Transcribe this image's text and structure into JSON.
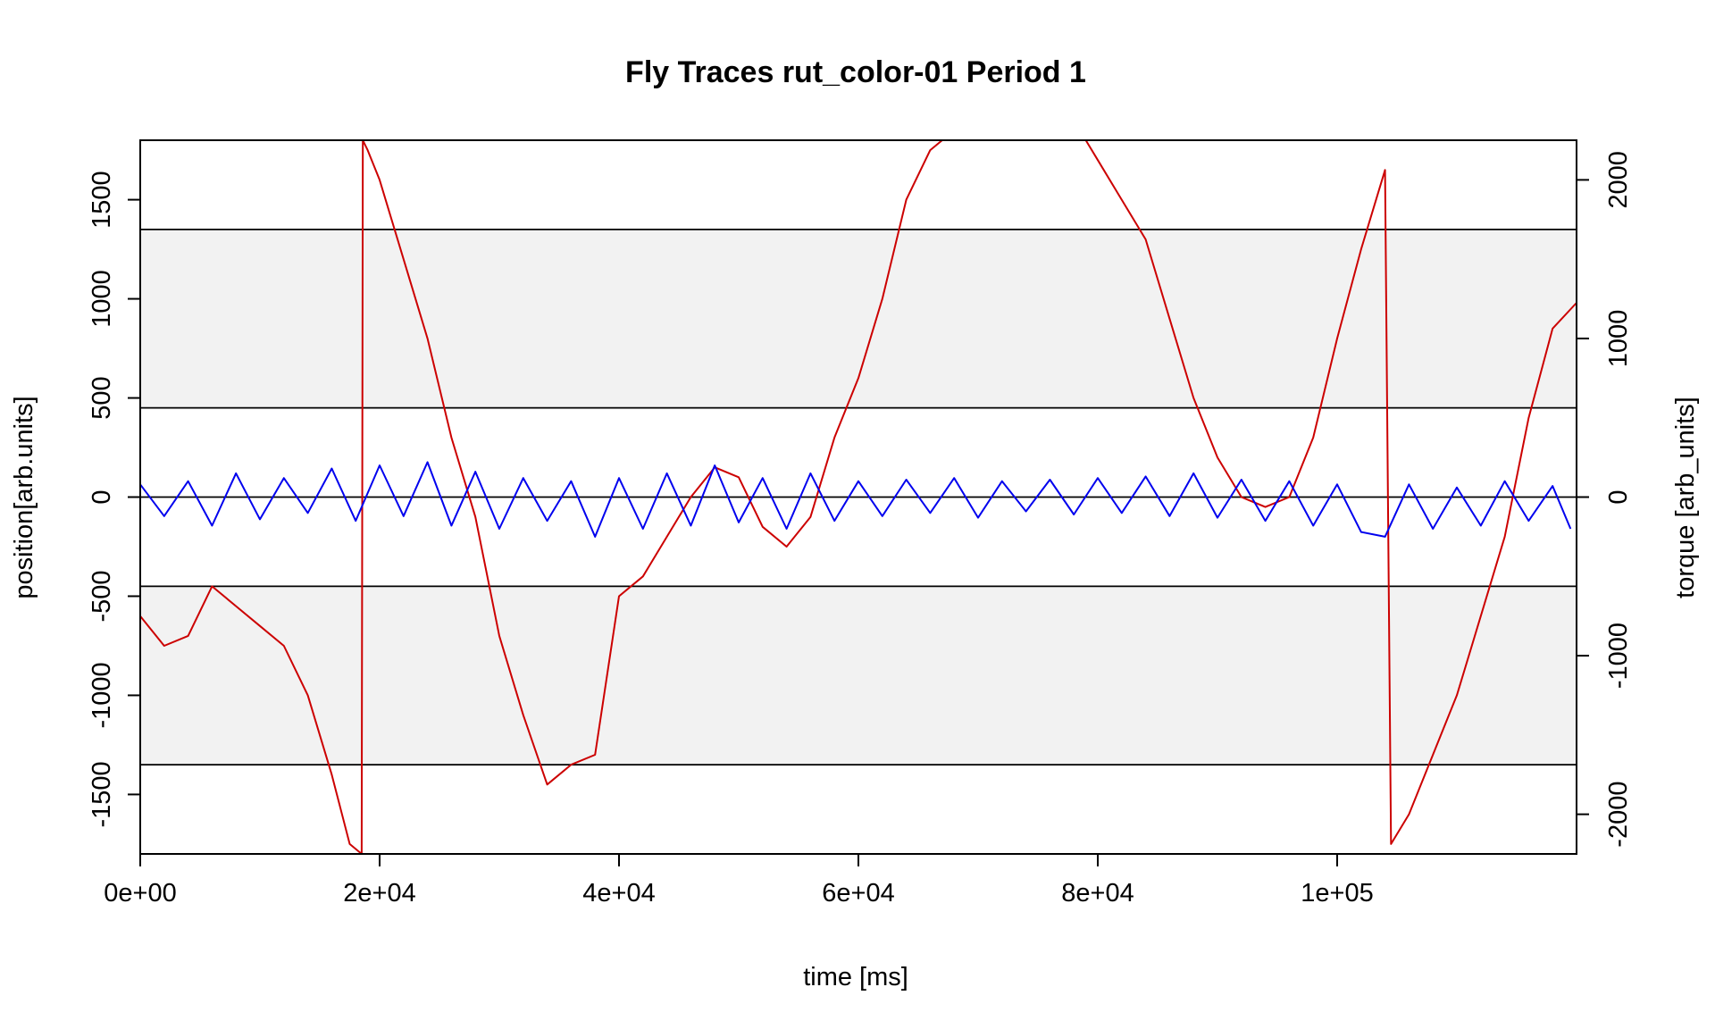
{
  "chart_data": {
    "type": "line",
    "title": "Fly Traces rut_color-01 Period 1",
    "xlabel": "time [ms]",
    "ylabel_left": "position[arb.units]",
    "ylabel_right": "torque [arb_units]",
    "xlim": [
      0,
      120000
    ],
    "ylim_left": [
      -1800,
      1800
    ],
    "ylim_right": [
      -2250,
      2250
    ],
    "x_ticks": [
      0,
      20000,
      40000,
      60000,
      80000,
      100000
    ],
    "x_tick_labels": [
      "0e+00",
      "2e+04",
      "4e+04",
      "6e+04",
      "8e+04",
      "1e+05"
    ],
    "y_left_ticks": [
      -1500,
      -1000,
      -500,
      0,
      500,
      1000,
      1500
    ],
    "y_left_tick_labels": [
      "-1500",
      "-1000",
      "-500",
      "0",
      "500",
      "1000",
      "1500"
    ],
    "y_right_ticks": [
      -2000,
      -1000,
      0,
      1000,
      2000
    ],
    "y_right_tick_labels": [
      "-2000",
      "-1000",
      "0",
      "1000",
      "2000"
    ],
    "shaded_bands": [
      [
        450,
        1350
      ],
      [
        -1350,
        -450
      ]
    ],
    "horizontal_lines": [
      1350,
      450,
      0,
      -450,
      -1350
    ],
    "colors": {
      "position": "#cc0000",
      "torque": "#0000ee",
      "band": "#f2f2f2",
      "axis": "#000000"
    },
    "series": [
      {
        "axis": "left",
        "color": "#cc0000",
        "x": [
          0,
          2000,
          4000,
          6000,
          8000,
          10000,
          12000,
          14000,
          16000,
          17500,
          18500,
          18600,
          19000,
          20000,
          22000,
          24000,
          26000,
          28000,
          30000,
          32000,
          34000,
          36000,
          38000,
          40000,
          42000,
          44000,
          46000,
          48000,
          50000,
          52000,
          54000,
          56000,
          58000,
          60000,
          62000,
          64000,
          66000,
          67000,
          68000,
          70000,
          72000,
          74000,
          76000,
          78000,
          79000,
          80000,
          82000,
          84000,
          86000,
          88000,
          90000,
          92000,
          94000,
          96000,
          98000,
          100000,
          102000,
          104000,
          104500,
          106000,
          108000,
          110000,
          112000,
          114000,
          116000,
          118000,
          120000
        ],
        "y": [
          -600,
          -750,
          -700,
          -450,
          -550,
          -650,
          -750,
          -1000,
          -1400,
          -1750,
          -1800,
          1800,
          1750,
          1600,
          1200,
          800,
          300,
          -100,
          -700,
          -1100,
          -1450,
          -1350,
          -1300,
          -500,
          -400,
          -200,
          0,
          150,
          100,
          -150,
          -250,
          -100,
          300,
          600,
          1000,
          1500,
          1750,
          1800,
          1800,
          1800,
          1800,
          1800,
          1800,
          1800,
          1800,
          1700,
          1500,
          1300,
          900,
          500,
          200,
          0,
          -50,
          0,
          300,
          800,
          1250,
          1650,
          -1750,
          -1600,
          -1300,
          -1000,
          -600,
          -200,
          400,
          850,
          980
        ]
      },
      {
        "axis": "right",
        "color": "#0000ee",
        "x": [
          0,
          2000,
          4000,
          6000,
          8000,
          10000,
          12000,
          14000,
          16000,
          18000,
          20000,
          22000,
          24000,
          26000,
          28000,
          30000,
          32000,
          34000,
          36000,
          38000,
          40000,
          42000,
          44000,
          46000,
          48000,
          50000,
          52000,
          54000,
          56000,
          58000,
          60000,
          62000,
          64000,
          66000,
          68000,
          70000,
          72000,
          74000,
          76000,
          78000,
          80000,
          82000,
          84000,
          86000,
          88000,
          90000,
          92000,
          94000,
          96000,
          98000,
          100000,
          102000,
          104000,
          106000,
          108000,
          110000,
          112000,
          114000,
          116000,
          118000,
          119500
        ],
        "y": [
          80,
          -120,
          100,
          -180,
          150,
          -140,
          120,
          -100,
          180,
          -150,
          200,
          -120,
          220,
          -180,
          160,
          -200,
          120,
          -150,
          100,
          -250,
          120,
          -200,
          150,
          -180,
          200,
          -160,
          120,
          -200,
          150,
          -150,
          100,
          -120,
          110,
          -100,
          120,
          -130,
          100,
          -90,
          110,
          -110,
          120,
          -100,
          130,
          -120,
          150,
          -130,
          110,
          -150,
          100,
          -180,
          80,
          -220,
          -250,
          80,
          -200,
          60,
          -180,
          100,
          -150,
          70,
          -200
        ]
      }
    ]
  }
}
